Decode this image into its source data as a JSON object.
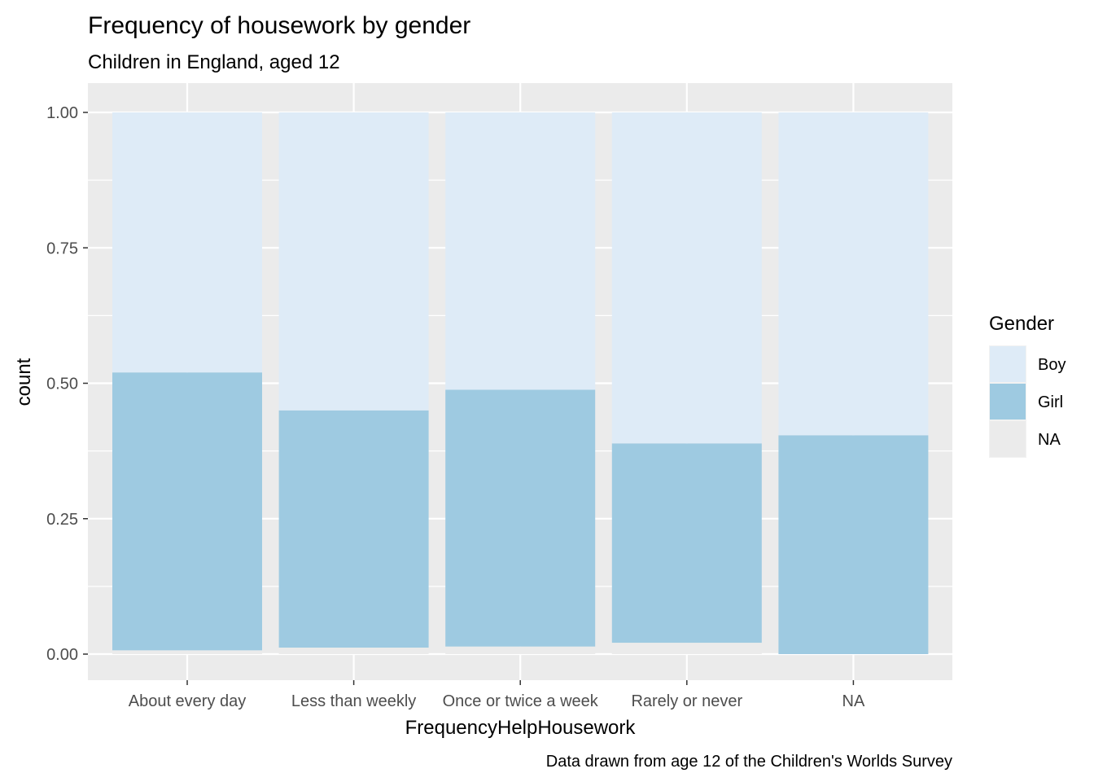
{
  "chart_data": {
    "type": "bar",
    "stacked": true,
    "title": "Frequency of housework by gender",
    "subtitle": "Children in England, aged 12",
    "xlabel": "FrequencyHelpHousework",
    "ylabel": "count",
    "caption": "Data drawn from age 12 of the Children's Worlds Survey",
    "categories": [
      "About every day",
      "Less than weekly",
      "Once or twice a week",
      "Rarely or never",
      "NA"
    ],
    "ylim": [
      0,
      1
    ],
    "yticks": [
      "0.00",
      "0.25",
      "0.50",
      "0.75",
      "1.00"
    ],
    "ytick_values": [
      0,
      0.25,
      0.5,
      0.75,
      1
    ],
    "grid": true,
    "legend": {
      "title": "Gender",
      "position": "right",
      "entries": [
        "Boy",
        "Girl",
        "NA"
      ]
    },
    "series": [
      {
        "name": "NA",
        "color": "#ebebeb",
        "values": [
          0.007,
          0.012,
          0.014,
          0.021,
          0.0
        ]
      },
      {
        "name": "Girl",
        "color": "#9ecae1",
        "values": [
          0.513,
          0.438,
          0.474,
          0.368,
          0.404
        ]
      },
      {
        "name": "Boy",
        "color": "#deebf7",
        "values": [
          0.48,
          0.55,
          0.512,
          0.611,
          0.596
        ]
      }
    ]
  }
}
